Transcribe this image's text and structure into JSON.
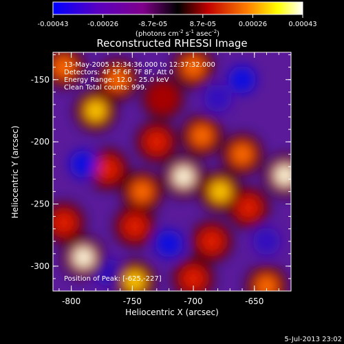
{
  "colorbar": {
    "ticks": [
      "-0.00043",
      "-0.00026",
      "-8.7e-05",
      "8.7e-05",
      "0.00026",
      "0.00043"
    ],
    "units_pre": "(photons cm",
    "units_exp1": "-2",
    "units_mid": " s",
    "units_exp2": "-1",
    "units_mid2": " asec",
    "units_exp3": "-2",
    "units_post": ")",
    "colors": [
      "#0000ff",
      "#5a00c0",
      "#80008a",
      "#000000",
      "#ff0000",
      "#ff8000",
      "#ffff00",
      "#ffffff"
    ]
  },
  "chart_data": {
    "type": "heatmap",
    "title": "Reconstructed RHESSI Image",
    "xlabel": "Heliocentric X (arcsec)",
    "ylabel": "Heliocentric Y (arcsec)",
    "xlim": [
      -815,
      -620
    ],
    "ylim": [
      -320,
      -128
    ],
    "xticks": [
      -800,
      -750,
      -700,
      -650
    ],
    "xtick_labels": [
      "-800",
      "-750",
      "-700",
      "-650"
    ],
    "yticks": [
      -150,
      -200,
      -250,
      -300
    ],
    "ytick_labels": [
      "-150",
      "-200",
      "-250",
      "-300"
    ],
    "value_range": [
      -0.00043,
      0.00043
    ],
    "annotations": [
      "13-May-2005 12:34:36.000 to 12:37:32.000",
      "Detectors: 4F 5F 6F 7F 8F, Att 0",
      "Energy Range: 12.0 - 25.0 keV",
      "Clean    Total counts: 999."
    ],
    "peak_label": "Position of Peak: [-625,-227]",
    "peak": [
      -625,
      -227
    ],
    "bright_sources": [
      {
        "x": -806,
        "y": -140,
        "level": 0.7
      },
      {
        "x": -780,
        "y": -175,
        "level": 0.75
      },
      {
        "x": -762,
        "y": -150,
        "level": 0.6
      },
      {
        "x": -700,
        "y": -140,
        "level": 0.7
      },
      {
        "x": -730,
        "y": -200,
        "level": 0.55
      },
      {
        "x": -693,
        "y": -195,
        "level": 0.6
      },
      {
        "x": -708,
        "y": -228,
        "level": 0.95
      },
      {
        "x": -678,
        "y": -240,
        "level": 0.85
      },
      {
        "x": -660,
        "y": -210,
        "level": 0.65
      },
      {
        "x": -742,
        "y": -240,
        "level": 0.6
      },
      {
        "x": -748,
        "y": -268,
        "level": 0.55
      },
      {
        "x": -625,
        "y": -227,
        "level": 1.0
      },
      {
        "x": -655,
        "y": -253,
        "level": 0.55
      },
      {
        "x": -790,
        "y": -293,
        "level": 0.95
      },
      {
        "x": -806,
        "y": -265,
        "level": 0.5
      },
      {
        "x": -748,
        "y": -312,
        "level": 0.85
      },
      {
        "x": -700,
        "y": -310,
        "level": 0.5
      },
      {
        "x": -640,
        "y": -316,
        "level": 0.7
      },
      {
        "x": -685,
        "y": -280,
        "level": 0.45
      },
      {
        "x": -770,
        "y": -222,
        "level": 0.45
      },
      {
        "x": -725,
        "y": -165,
        "level": 0.4
      }
    ],
    "dim_sources": [
      {
        "x": -790,
        "y": -218,
        "level": -0.6
      },
      {
        "x": -660,
        "y": -150,
        "level": -0.6
      },
      {
        "x": -680,
        "y": -165,
        "level": -0.5
      },
      {
        "x": -720,
        "y": -282,
        "level": -0.55
      },
      {
        "x": -640,
        "y": -280,
        "level": -0.5
      },
      {
        "x": -770,
        "y": -305,
        "level": -0.45
      }
    ]
  },
  "footer": {
    "date": "5-Jul-2013 23:02"
  }
}
